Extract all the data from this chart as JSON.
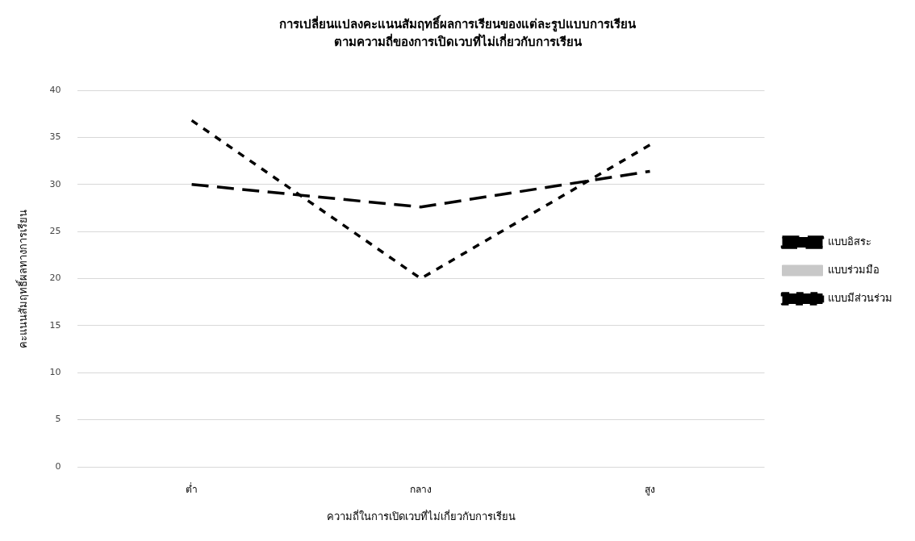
{
  "chart_data": {
    "type": "line",
    "title": "การเปลี่ยนแปลงคะแนนสัมฤทธิ์ผลการเรียนของแต่ละรูปแบบการเรียน",
    "subtitle": "ตามความถี่ของการเปิดเวบที่ไม่เกี่ยวกับการเรียน",
    "xlabel": "ความถี่ในการเปิดเวบที่ไม่เกี่ยวกับการเรียน",
    "ylabel": "คะแนนสัมฤทธิ์ผลทางการเรียน",
    "categories": [
      "ต่ำ",
      "กลาง",
      "สูง"
    ],
    "series": [
      {
        "name": "แบบอิสระ",
        "color": "#000000",
        "values": [
          30,
          27.6,
          31.4
        ],
        "line_style": "dashed"
      },
      {
        "name": "แบบร่วมมือ",
        "color": "#c8c8c8",
        "values": [
          null,
          null,
          null
        ],
        "line_style": "solid"
      },
      {
        "name": "แบบมีส่วนร่วม",
        "color": "#000000",
        "values": [
          36.8,
          20,
          34.2
        ],
        "line_style": "dotted"
      }
    ],
    "ylim": [
      0,
      40
    ],
    "yticks": [
      0,
      5,
      10,
      15,
      20,
      25,
      30,
      35,
      40
    ],
    "grid": "y",
    "legend": "right",
    "marker": "none"
  }
}
